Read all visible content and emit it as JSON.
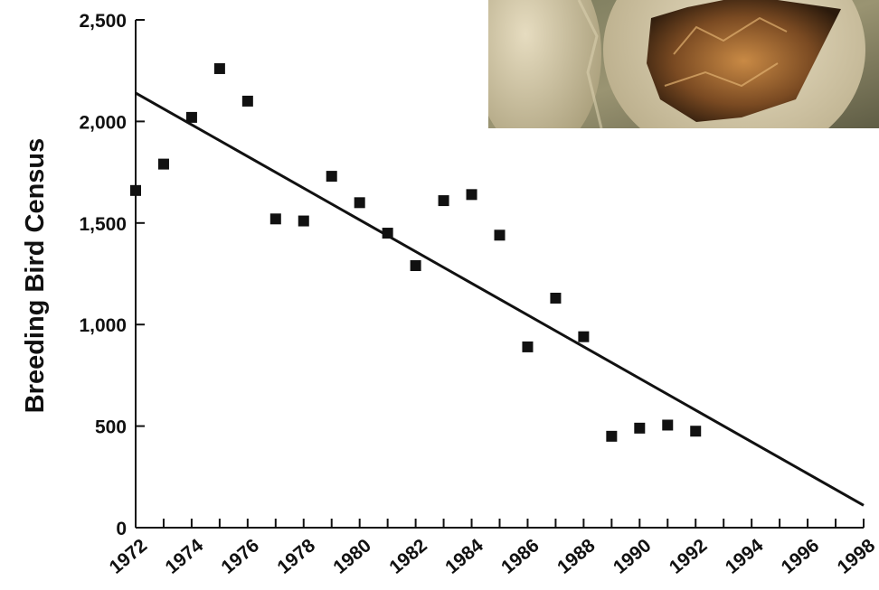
{
  "chart_data": {
    "type": "scatter",
    "title": "",
    "xlabel": "",
    "ylabel": "Breeding Bird Census",
    "xlim": [
      1972,
      1998
    ],
    "ylim": [
      0,
      2500
    ],
    "x_ticks": [
      "1972",
      "1974",
      "1976",
      "1978",
      "1980",
      "1982",
      "1984",
      "1986",
      "1988",
      "1990",
      "1992",
      "1994",
      "1996",
      "1998"
    ],
    "y_ticks": [
      "0",
      "500",
      "1,000",
      "1,500",
      "2,000",
      "2,500"
    ],
    "grid": false,
    "legend": "none",
    "colors": {
      "points": "#111111",
      "trend": "#111111",
      "axis": "#111111"
    },
    "points": [
      {
        "x": 1972,
        "y": 1660
      },
      {
        "x": 1973,
        "y": 1790
      },
      {
        "x": 1974,
        "y": 2020
      },
      {
        "x": 1975,
        "y": 2260
      },
      {
        "x": 1976,
        "y": 2100
      },
      {
        "x": 1977,
        "y": 1520
      },
      {
        "x": 1978,
        "y": 1510
      },
      {
        "x": 1979,
        "y": 1730
      },
      {
        "x": 1980,
        "y": 1600
      },
      {
        "x": 1981,
        "y": 1450
      },
      {
        "x": 1982,
        "y": 1290
      },
      {
        "x": 1983,
        "y": 1610
      },
      {
        "x": 1984,
        "y": 1640
      },
      {
        "x": 1985,
        "y": 1440
      },
      {
        "x": 1986,
        "y": 890
      },
      {
        "x": 1987,
        "y": 1130
      },
      {
        "x": 1988,
        "y": 940
      },
      {
        "x": 1989,
        "y": 450
      },
      {
        "x": 1990,
        "y": 490
      },
      {
        "x": 1991,
        "y": 505
      },
      {
        "x": 1992,
        "y": 475
      }
    ],
    "trendline": [
      {
        "x": 1972,
        "y": 2140
      },
      {
        "x": 1998,
        "y": 110
      }
    ],
    "inset_image": "bird-egg-hatching-photo"
  }
}
